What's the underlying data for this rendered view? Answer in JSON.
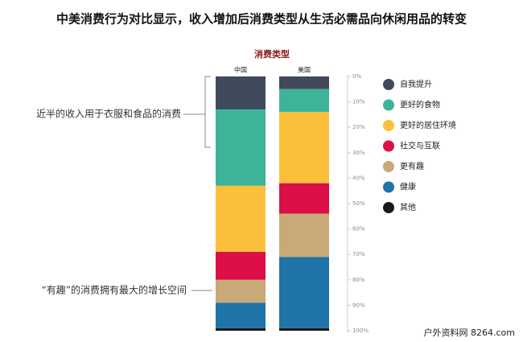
{
  "chart_data": {
    "type": "stacked_bar",
    "title": "中美消费行为对比显示，收入增加后消费类型从生活必需品向休闲用品的转变",
    "subtitle": "消费类型",
    "categories": [
      "中国",
      "美国"
    ],
    "series": [
      {
        "name": "自我提升",
        "color": "#414a5c",
        "values": [
          13,
          5
        ]
      },
      {
        "name": "更好的食物",
        "color": "#3db39a",
        "values": [
          30,
          9
        ]
      },
      {
        "name": "更好的居住环境",
        "color": "#fbc03b",
        "values": [
          26,
          28
        ]
      },
      {
        "name": "社交与互联",
        "color": "#dc0f46",
        "values": [
          11,
          12
        ]
      },
      {
        "name": "更有趣",
        "color": "#c9a978",
        "values": [
          9,
          17
        ]
      },
      {
        "name": "健康",
        "color": "#1f74a8",
        "values": [
          10,
          28
        ]
      },
      {
        "name": "其他",
        "color": "#1a1a1a",
        "values": [
          1,
          1
        ]
      }
    ],
    "ylim": [
      0,
      100
    ],
    "yticks": [
      {
        "value": 0,
        "label": "0%"
      },
      {
        "value": 10,
        "label": "10%"
      },
      {
        "value": 20,
        "label": "20%"
      },
      {
        "value": 30,
        "label": "30%"
      },
      {
        "value": 40,
        "label": "40%"
      },
      {
        "value": 50,
        "label": "50%"
      },
      {
        "value": 60,
        "label": "60%"
      },
      {
        "value": 70,
        "label": "70%"
      },
      {
        "value": 80,
        "label": "80%"
      },
      {
        "value": 90,
        "label": "90%"
      },
      {
        "value": 100,
        "label": "100%"
      }
    ],
    "annotations": [
      "近半的收入用于衣服和食品的消费",
      "“有趣”的消费拥有最大的增长空间"
    ],
    "legend": "right",
    "watermark": "户外资料网 8264.com"
  }
}
